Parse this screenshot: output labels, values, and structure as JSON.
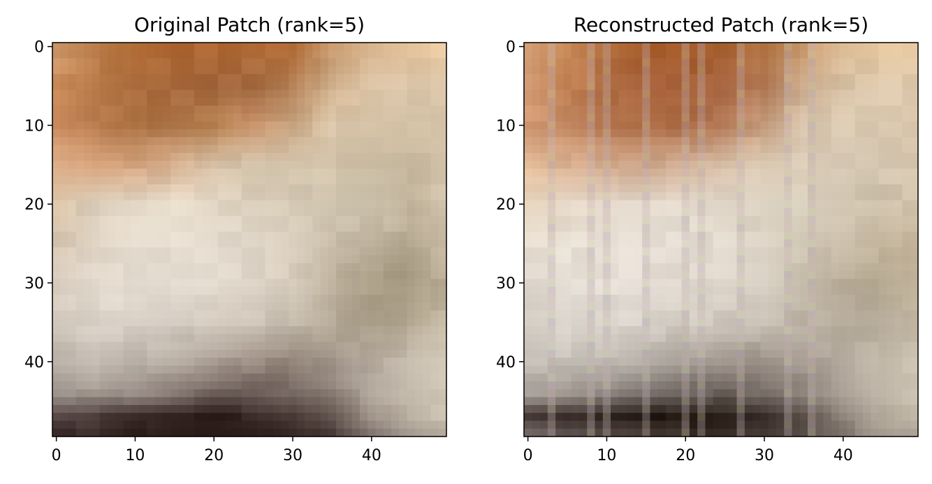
{
  "figure": {
    "panels": [
      {
        "title": "Original Patch (rank=5)"
      },
      {
        "title": "Reconstructed Patch (rank=5)"
      }
    ]
  },
  "chart_data": [
    {
      "type": "heatmap",
      "title": "Original Patch (rank=5)",
      "xlabel": "",
      "ylabel": "",
      "xlim": [
        -0.5,
        49.5
      ],
      "ylim": [
        49.5,
        -0.5
      ],
      "xticks": [
        0,
        10,
        20,
        30,
        40
      ],
      "yticks": [
        0,
        10,
        20,
        30,
        40
      ],
      "grid": false,
      "image_size": [
        50,
        50
      ],
      "color_anchors": {
        "rows": [
          0,
          5,
          10,
          15,
          20,
          25,
          30,
          35,
          40,
          44,
          47,
          49
        ],
        "cols": [
          0,
          5,
          10,
          15,
          20,
          25,
          30,
          35,
          40,
          45,
          49
        ],
        "colors": [
          [
            "#d09a6c",
            "#bf8250",
            "#b57038",
            "#ae6634",
            "#ad6630",
            "#b26c38",
            "#ad6630",
            "#c89a6e",
            "#dcb892",
            "#e2c198",
            "#e8c9a0"
          ],
          [
            "#cc8e5c",
            "#b87a48",
            "#ad6d3e",
            "#a86a3c",
            "#a3663c",
            "#a2683e",
            "#b07c52",
            "#d2b28e",
            "#d8c0a2",
            "#dcc6aa",
            "#dec9ac"
          ],
          [
            "#c98a5c",
            "#b77a4c",
            "#a76c3c",
            "#b0774a",
            "#b6814f",
            "#d29c74",
            "#c9a682",
            "#d8c4a8",
            "#d8c4a8",
            "#d2c0a4",
            "#d4c2a6"
          ],
          [
            "#e2b48e",
            "#d8a47c",
            "#d4a47e",
            "#d4ae8c",
            "#dac4aa",
            "#d0c0a8",
            "#d4c4ac",
            "#d2c2aa",
            "#cdbfa6",
            "#cabba2",
            "#d0c0a6"
          ],
          [
            "#d9c2a6",
            "#ddd0bc",
            "#e6dac8",
            "#e8ddcc",
            "#e0d4c2",
            "#dcd0bc",
            "#d6cbb6",
            "#d0c6b0",
            "#cfc4ae",
            "#c4b69e",
            "#d2c4ac"
          ],
          [
            "#d4c4b0",
            "#ded2c2",
            "#e8dfd2",
            "#e6ddd0",
            "#e2d9cc",
            "#e0d6c8",
            "#d8cdbc",
            "#c8bca8",
            "#c2b6a2",
            "#b4a890",
            "#c6b8a0"
          ],
          [
            "#d8ccbe",
            "#e2d8cc",
            "#e6ddd2",
            "#e4dbd0",
            "#e2d9ce",
            "#ddd3c6",
            "#d4c9ba",
            "#bcb09c",
            "#a89c84",
            "#a49880",
            "#b8aa92"
          ],
          [
            "#d2c8bc",
            "#d8d0c6",
            "#dad2c8",
            "#d6cec4",
            "#d2c8bc",
            "#ccc2b6",
            "#c6bcae",
            "#b6aa98",
            "#a99e88",
            "#b2a690",
            "#c4b8a2"
          ],
          [
            "#b8b0a6",
            "#c2bab0",
            "#bdb5ab",
            "#b4aaa0",
            "#a89c92",
            "#9a8c82",
            "#928478",
            "#a0948a",
            "#b8aca0",
            "#c8beb0",
            "#d2c8b8"
          ],
          [
            "#9c928c",
            "#a49a92",
            "#988c86",
            "#847670",
            "#6e605a",
            "#6a5c56",
            "#786a64",
            "#8c8078",
            "#b0a69a",
            "#c4baac",
            "#cfc5b5"
          ],
          [
            "#5a4a48",
            "#4c3c3a",
            "#3e2e2c",
            "#30201e",
            "#2c1c1a",
            "#362624",
            "#4a3a36",
            "#6a5c56",
            "#a09488",
            "#beb4a6",
            "#cac0b0"
          ],
          [
            "#3e2e2e",
            "#3a2a28",
            "#32221e",
            "#2a1a16",
            "#281816",
            "#2c1c1a",
            "#382826",
            "#4c3e3a",
            "#807470",
            "#a89e92",
            "#bab0a2"
          ]
        ]
      }
    },
    {
      "type": "heatmap",
      "title": "Reconstructed Patch (rank=5)",
      "xlabel": "",
      "ylabel": "",
      "xlim": [
        -0.5,
        49.5
      ],
      "ylim": [
        49.5,
        -0.5
      ],
      "xticks": [
        0,
        10,
        20,
        30,
        40
      ],
      "yticks": [
        0,
        10,
        20,
        30,
        40
      ],
      "grid": false,
      "image_size": [
        50,
        50
      ],
      "color_anchors": {
        "rows": [
          0,
          5,
          10,
          15,
          20,
          25,
          30,
          35,
          40,
          44,
          47,
          49
        ],
        "cols": [
          0,
          5,
          10,
          15,
          20,
          25,
          30,
          35,
          40,
          45,
          49
        ],
        "colors": [
          [
            "#d8a47a",
            "#c48654",
            "#b46e3e",
            "#a85e2c",
            "#a65c2a",
            "#aa6434",
            "#b47644",
            "#cc9c70",
            "#dcbc94",
            "#e2c49c",
            "#e6c8a0"
          ],
          [
            "#d49c74",
            "#c28052",
            "#b06e44",
            "#a6603a",
            "#a45e36",
            "#a86642",
            "#b47a56",
            "#ccac8c",
            "#d8c2a6",
            "#dcc8ac",
            "#dec8ac"
          ],
          [
            "#d29a74",
            "#c48a64",
            "#b67650",
            "#b07048",
            "#ae6e48",
            "#b87e5c",
            "#c8a080",
            "#d8c4ac",
            "#dcccb4",
            "#dccab2",
            "#dcc8ae"
          ],
          [
            "#e4bc98",
            "#d8ae8e",
            "#d0a688",
            "#cca488",
            "#d0ae94",
            "#d8c0a8",
            "#dccab4",
            "#dccdb8",
            "#d8cab6",
            "#d4c6b0",
            "#d6c6ae"
          ],
          [
            "#e8d6c0",
            "#e4d6c6",
            "#e6dacc",
            "#e6dccf",
            "#e4dacd",
            "#e0d6c8",
            "#dcd2c2",
            "#d6ccba",
            "#d2c6b2",
            "#cdc0aa",
            "#d2c4ac"
          ],
          [
            "#e6dccf",
            "#e8e0d4",
            "#eae2d8",
            "#e8e0d6",
            "#e6ded4",
            "#e2dace",
            "#dcd2c4",
            "#d0c6b4",
            "#c8bca8",
            "#c2b49c",
            "#cab8a0"
          ],
          [
            "#e2dad0",
            "#e4ddd4",
            "#e6ded6",
            "#e4dcd4",
            "#e2dad0",
            "#ded6cb",
            "#d6cec2",
            "#c6bcac",
            "#b8ac98",
            "#b2a68e",
            "#bcae96"
          ],
          [
            "#d6cfc6",
            "#dad4cc",
            "#dcd6ce",
            "#d8d2ca",
            "#d2ccc2",
            "#ccc4ba",
            "#c6beb2",
            "#bcb2a4",
            "#b4aa9a",
            "#b8ae9c",
            "#c4b8a4"
          ],
          [
            "#c2beb6",
            "#c6c2ba",
            "#c2bcb4",
            "#b6b0a8",
            "#aaa29a",
            "#a0968e",
            "#9c9288",
            "#a49a90",
            "#b4aa9e",
            "#c2b8aa",
            "#cac0b0"
          ],
          [
            "#a49c96",
            "#9c928c",
            "#908680",
            "#7e7470",
            "#6c625e",
            "#6a605a",
            "#7a706a",
            "#8e847c",
            "#aaa096",
            "#c0b6a8",
            "#ccc2b2"
          ],
          [
            "#4a3c38",
            "#3c2e2a",
            "#2e2420",
            "#241a16",
            "#20160e",
            "#261c16",
            "#382c28",
            "#5a4e48",
            "#8e847a",
            "#b6ac9e",
            "#c8bead"
          ],
          [
            "#6e6260",
            "#5c5250",
            "#4c403c",
            "#40342e",
            "#3a2e28",
            "#3c302a",
            "#463a36",
            "#5c524c",
            "#847a72",
            "#a49a8e",
            "#b0a698"
          ]
        ]
      },
      "stripe_columns": [
        3,
        8,
        10,
        15,
        20,
        22,
        27,
        33,
        36
      ],
      "stripe_colors": [
        "#c8b0b8",
        "#c6c8a4",
        "#b8a6b6",
        "#c0b0a8"
      ]
    }
  ]
}
